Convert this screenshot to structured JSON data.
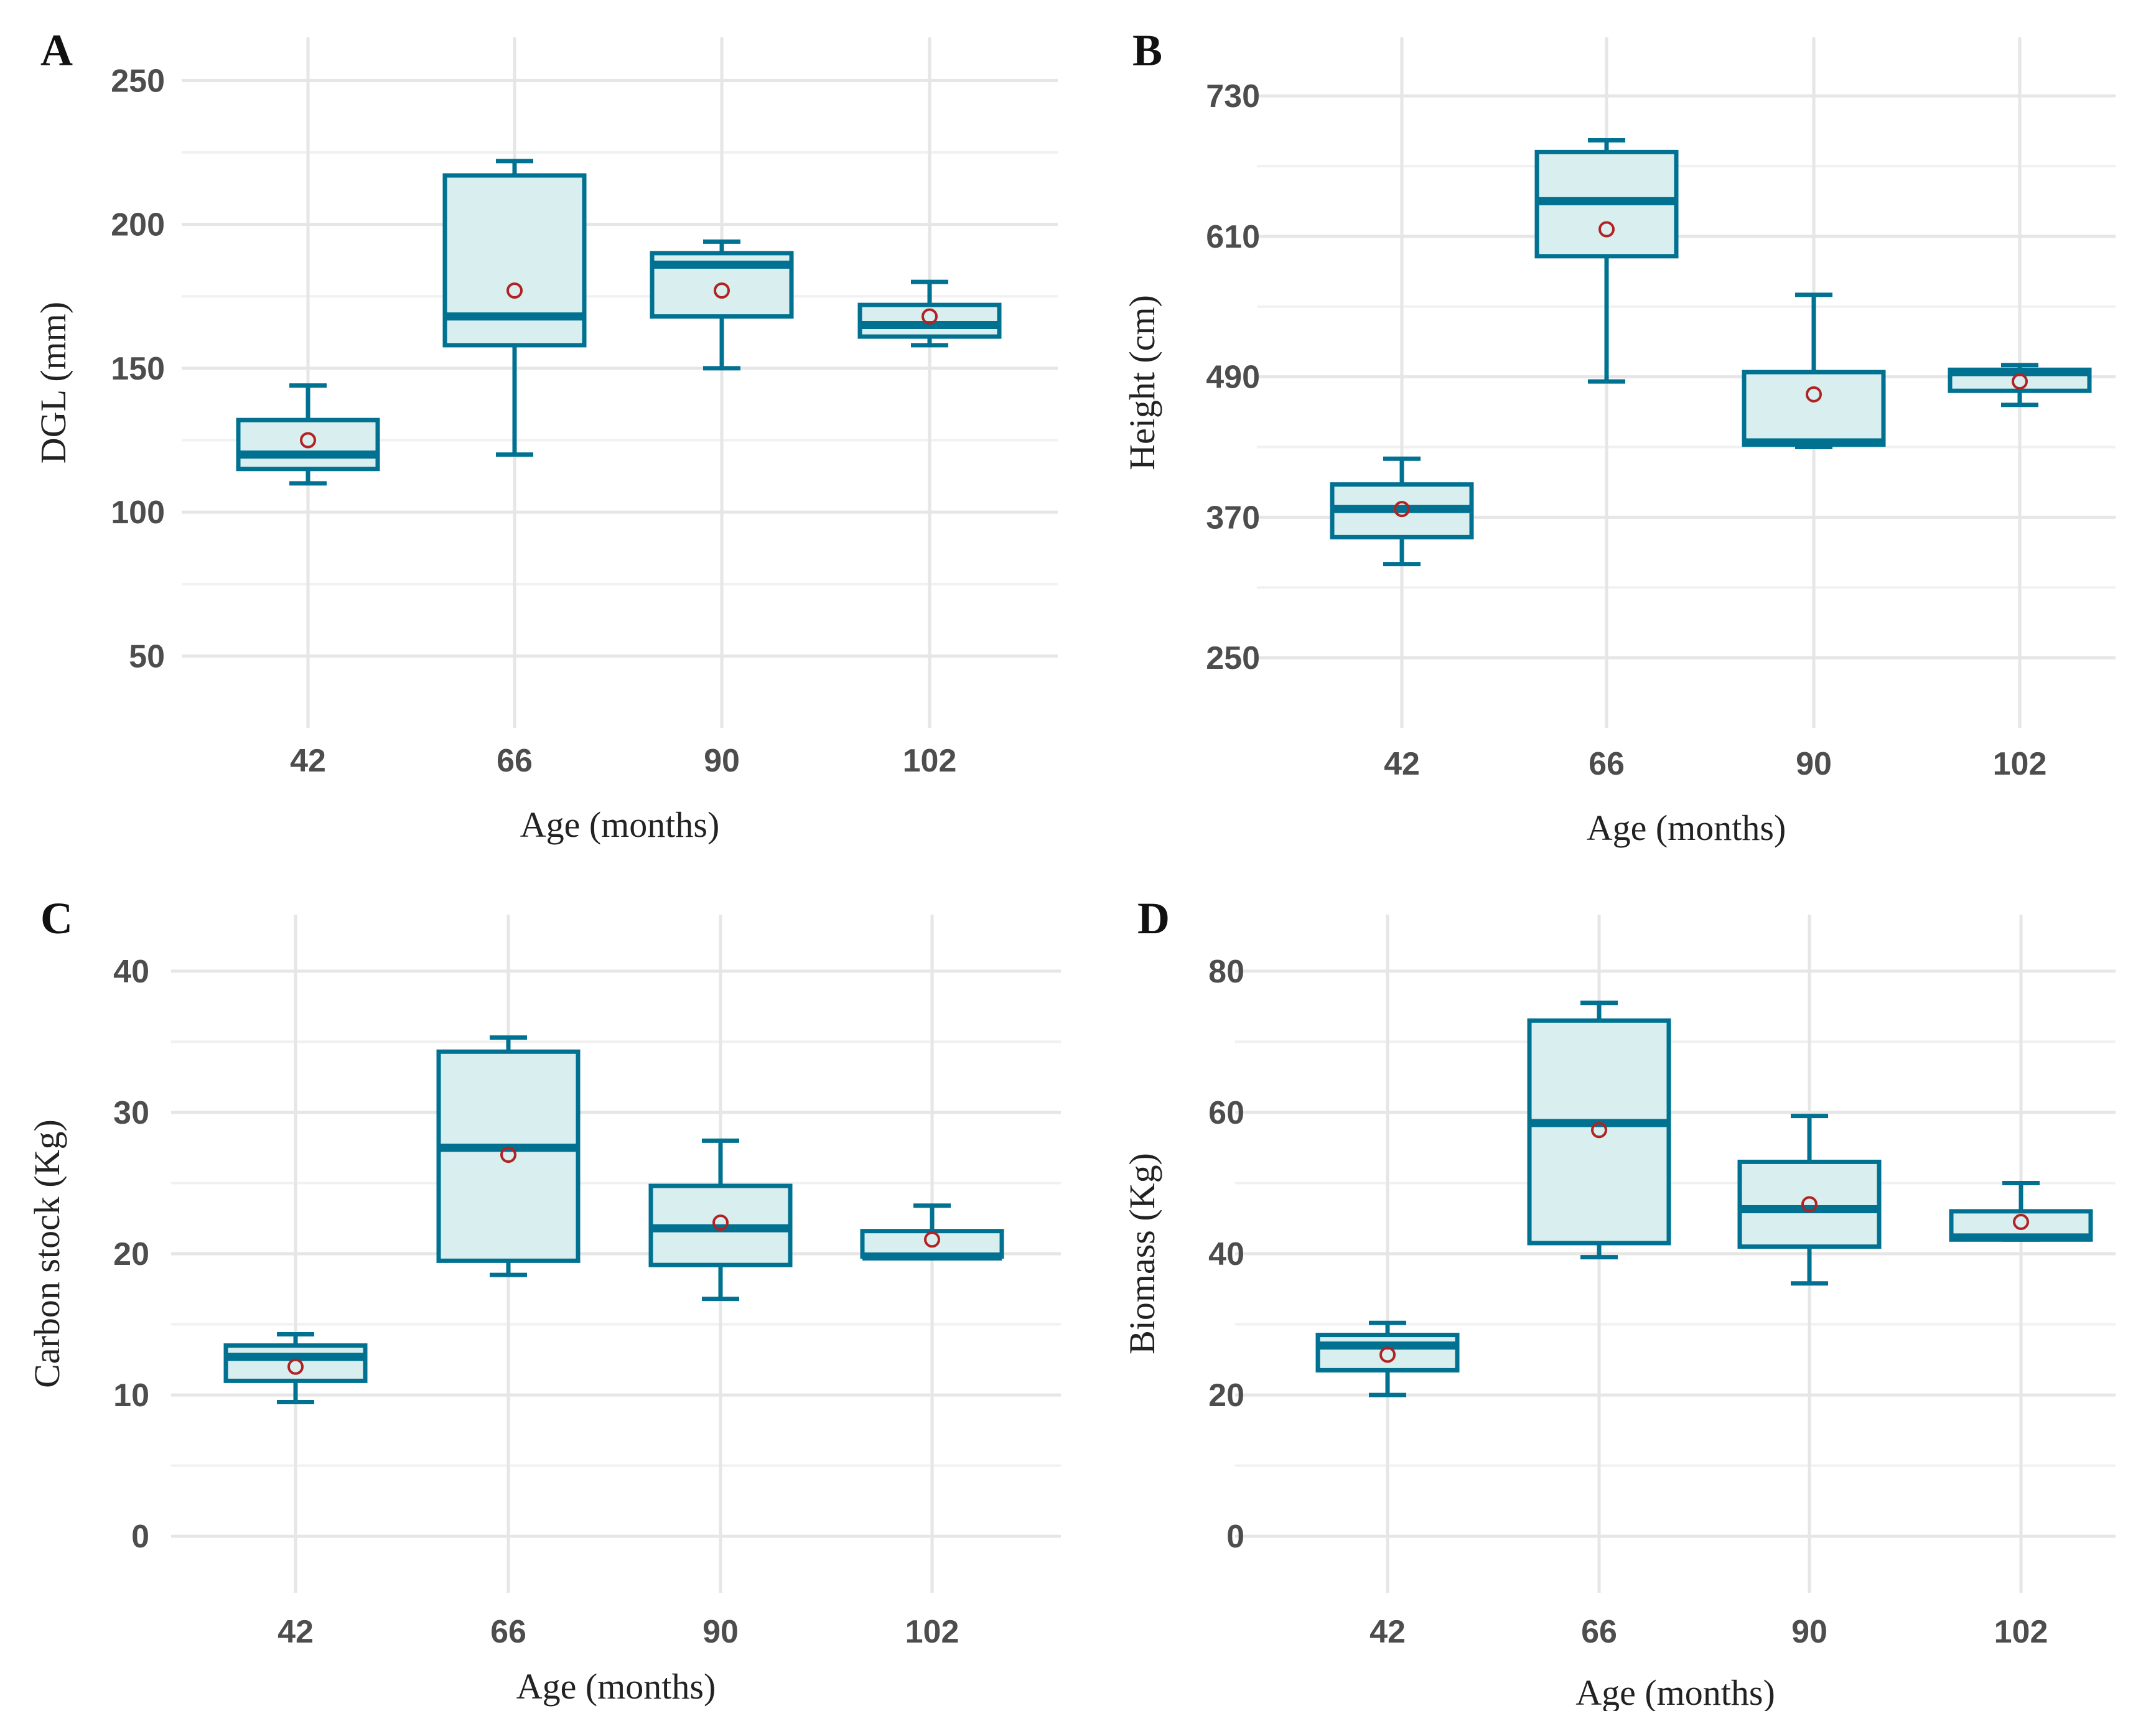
{
  "colors": {
    "box_stroke": "#007191",
    "box_fill": "#d9eeee",
    "mean_marker": "#b22222"
  },
  "chart_data": [
    {
      "panel": "A",
      "type": "box",
      "xlabel": "Age (months)",
      "ylabel": "DGL (mm)",
      "categories": [
        "42",
        "66",
        "90",
        "102"
      ],
      "ylim": [
        25,
        265
      ],
      "yticks": [
        50,
        100,
        150,
        200,
        250
      ],
      "boxes": [
        {
          "min": 110,
          "q1": 115,
          "median": 120,
          "q3": 132,
          "max": 144,
          "mean": 125
        },
        {
          "min": 120,
          "q1": 158,
          "median": 168,
          "q3": 217,
          "max": 222,
          "mean": 177
        },
        {
          "min": 150,
          "q1": 168,
          "median": 186,
          "q3": 190,
          "max": 194,
          "mean": 177
        },
        {
          "min": 158,
          "q1": 161,
          "median": 165,
          "q3": 172,
          "max": 180,
          "mean": 168
        }
      ]
    },
    {
      "panel": "B",
      "type": "box",
      "xlabel": "Age (months)",
      "ylabel": "Height (cm)",
      "categories": [
        "42",
        "66",
        "90",
        "102"
      ],
      "ylim": [
        190,
        780
      ],
      "yticks": [
        250,
        370,
        490,
        610,
        730
      ],
      "boxes": [
        {
          "min": 330,
          "q1": 353,
          "median": 377,
          "q3": 398,
          "max": 420,
          "mean": 377
        },
        {
          "min": 486,
          "q1": 593,
          "median": 640,
          "q3": 682,
          "max": 692,
          "mean": 616
        },
        {
          "min": 430,
          "q1": 432,
          "median": 434,
          "q3": 494,
          "max": 560,
          "mean": 475
        },
        {
          "min": 466,
          "q1": 478,
          "median": 494,
          "q3": 496,
          "max": 500,
          "mean": 486
        }
      ]
    },
    {
      "panel": "C",
      "type": "box",
      "xlabel": "Age (months)",
      "ylabel": "Carbon stock (Kg)",
      "categories": [
        "42",
        "66",
        "90",
        "102"
      ],
      "ylim": [
        -4,
        44
      ],
      "yticks": [
        0,
        10,
        20,
        30,
        40
      ],
      "boxes": [
        {
          "min": 9.5,
          "q1": 11,
          "median": 12.7,
          "q3": 13.5,
          "max": 14.3,
          "mean": 12
        },
        {
          "min": 18.5,
          "q1": 19.5,
          "median": 27.5,
          "q3": 34.3,
          "max": 35.3,
          "mean": 27
        },
        {
          "min": 16.8,
          "q1": 19.2,
          "median": 21.8,
          "q3": 24.8,
          "max": 28,
          "mean": 22.2
        },
        {
          "min": 19.8,
          "q1": 19.8,
          "median": 19.8,
          "q3": 21.6,
          "max": 23.4,
          "mean": 21
        }
      ]
    },
    {
      "panel": "D",
      "type": "box",
      "xlabel": "Age (months)",
      "ylabel": "Biomass (Kg)",
      "categories": [
        "42",
        "66",
        "90",
        "102"
      ],
      "ylim": [
        -8,
        88
      ],
      "yticks": [
        0,
        20,
        40,
        60,
        80
      ],
      "boxes": [
        {
          "min": 20,
          "q1": 23.5,
          "median": 27,
          "q3": 28.5,
          "max": 30.2,
          "mean": 25.7
        },
        {
          "min": 39.5,
          "q1": 41.5,
          "median": 58.5,
          "q3": 73,
          "max": 75.5,
          "mean": 57.5
        },
        {
          "min": 35.8,
          "q1": 41,
          "median": 46.3,
          "q3": 53,
          "max": 59.5,
          "mean": 47
        },
        {
          "min": 42,
          "q1": 42,
          "median": 42.3,
          "q3": 46,
          "max": 50,
          "mean": 44.5
        }
      ]
    }
  ]
}
